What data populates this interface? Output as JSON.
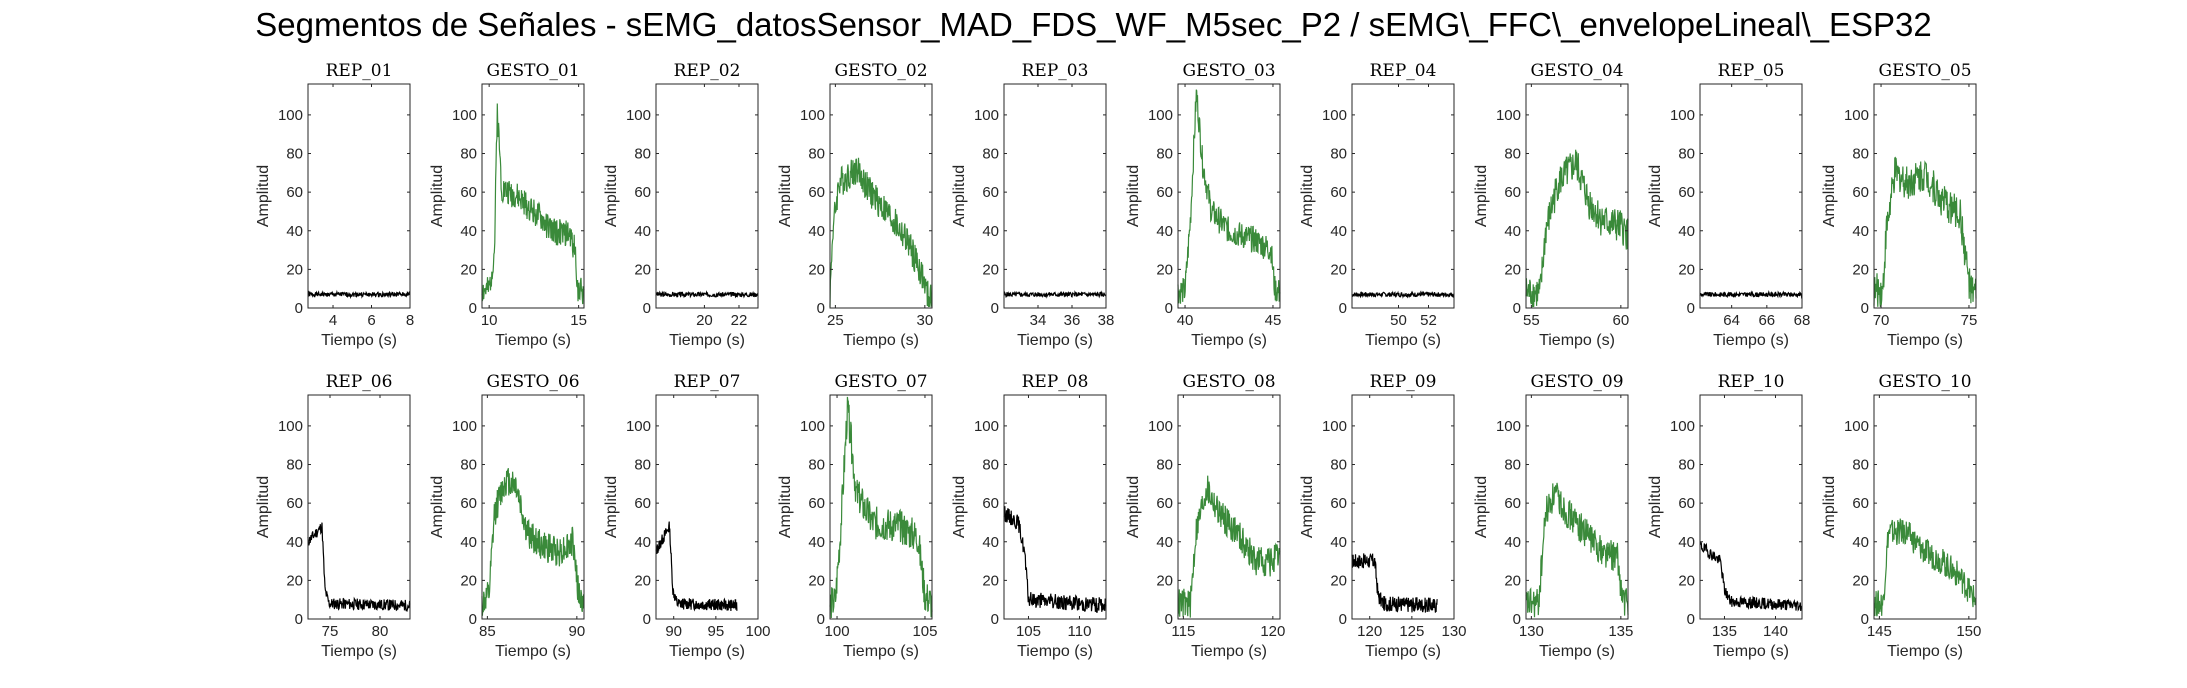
{
  "figure": {
    "title": "Segmentos de Señales - sEMG_datosSensor_MAD_FDS_WF_M5sec_P2 / sEMG\\_FFC\\_envelopeLineal\\_ESP32"
  },
  "chart_data": [
    {
      "type": "line",
      "title": "REP_01",
      "xlabel": "Tiempo (s)",
      "ylabel": "Amplitud",
      "xlim": [
        2.7,
        8.0
      ],
      "ylim": [
        0,
        116
      ],
      "xticks": [
        4,
        6,
        8
      ],
      "yticks": [
        0,
        20,
        40,
        60,
        80,
        100
      ],
      "color": "#000000",
      "profile": [
        [
          2.7,
          7
        ],
        [
          8.0,
          7
        ]
      ],
      "noise": 1.2,
      "seed": 1
    },
    {
      "type": "line",
      "title": "GESTO_01",
      "xlabel": "Tiempo (s)",
      "ylabel": "Amplitud",
      "xlim": [
        9.6,
        15.3
      ],
      "ylim": [
        0,
        116
      ],
      "xticks": [
        10,
        15
      ],
      "yticks": [
        0,
        20,
        40,
        60,
        80,
        100
      ],
      "color": "#3a8a3a",
      "profile": [
        [
          9.6,
          9
        ],
        [
          10.0,
          9
        ],
        [
          10.3,
          30
        ],
        [
          10.45,
          104
        ],
        [
          10.7,
          62
        ],
        [
          11.5,
          58
        ],
        [
          12.5,
          50
        ],
        [
          13.5,
          40
        ],
        [
          14.5,
          38
        ],
        [
          14.8,
          30
        ],
        [
          14.95,
          10
        ],
        [
          15.3,
          8
        ]
      ],
      "noise": 7,
      "seed": 2
    },
    {
      "type": "line",
      "title": "REP_02",
      "xlabel": "Tiempo (s)",
      "ylabel": "Amplitud",
      "xlim": [
        17.2,
        23.1
      ],
      "ylim": [
        0,
        116
      ],
      "xticks": [
        20,
        22
      ],
      "yticks": [
        0,
        20,
        40,
        60,
        80,
        100
      ],
      "color": "#000000",
      "profile": [
        [
          17.2,
          7
        ],
        [
          23.1,
          7
        ]
      ],
      "noise": 1.2,
      "seed": 3
    },
    {
      "type": "line",
      "title": "GESTO_02",
      "xlabel": "Tiempo (s)",
      "ylabel": "Amplitud",
      "xlim": [
        24.7,
        30.4
      ],
      "ylim": [
        0,
        116
      ],
      "xticks": [
        25,
        30
      ],
      "yticks": [
        0,
        20,
        40,
        60,
        80,
        100
      ],
      "color": "#3a8a3a",
      "profile": [
        [
          24.7,
          5
        ],
        [
          24.85,
          40
        ],
        [
          25.2,
          65
        ],
        [
          26.2,
          72
        ],
        [
          26.8,
          62
        ],
        [
          28.0,
          48
        ],
        [
          29.0,
          35
        ],
        [
          29.8,
          18
        ],
        [
          30.2,
          5
        ],
        [
          30.4,
          4
        ]
      ],
      "noise": 8,
      "seed": 4
    },
    {
      "type": "line",
      "title": "REP_03",
      "xlabel": "Tiempo (s)",
      "ylabel": "Amplitud",
      "xlim": [
        32.0,
        38.0
      ],
      "ylim": [
        0,
        116
      ],
      "xticks": [
        34,
        36,
        38
      ],
      "yticks": [
        0,
        20,
        40,
        60,
        80,
        100
      ],
      "color": "#000000",
      "profile": [
        [
          32.0,
          7
        ],
        [
          38.0,
          7
        ]
      ],
      "noise": 1.2,
      "seed": 5
    },
    {
      "type": "line",
      "title": "GESTO_03",
      "xlabel": "Tiempo (s)",
      "ylabel": "Amplitud",
      "xlim": [
        39.6,
        45.4
      ],
      "ylim": [
        0,
        116
      ],
      "xticks": [
        40,
        45
      ],
      "yticks": [
        0,
        20,
        40,
        60,
        80,
        100
      ],
      "color": "#3a8a3a",
      "profile": [
        [
          39.6,
          9
        ],
        [
          40.0,
          9
        ],
        [
          40.3,
          45
        ],
        [
          40.65,
          112
        ],
        [
          41.0,
          75
        ],
        [
          41.5,
          50
        ],
        [
          42.5,
          40
        ],
        [
          44.0,
          35
        ],
        [
          44.9,
          30
        ],
        [
          45.1,
          10
        ],
        [
          45.4,
          8
        ]
      ],
      "noise": 7,
      "seed": 6
    },
    {
      "type": "line",
      "title": "REP_04",
      "xlabel": "Tiempo (s)",
      "ylabel": "Amplitud",
      "xlim": [
        46.9,
        53.7
      ],
      "ylim": [
        0,
        116
      ],
      "xticks": [
        50,
        52
      ],
      "yticks": [
        0,
        20,
        40,
        60,
        80,
        100
      ],
      "color": "#000000",
      "profile": [
        [
          46.9,
          7
        ],
        [
          53.7,
          7
        ]
      ],
      "noise": 1.2,
      "seed": 7
    },
    {
      "type": "line",
      "title": "GESTO_04",
      "xlabel": "Tiempo (s)",
      "ylabel": "Amplitud",
      "xlim": [
        54.7,
        60.4
      ],
      "ylim": [
        0,
        116
      ],
      "xticks": [
        55,
        60
      ],
      "yticks": [
        0,
        20,
        40,
        60,
        80,
        100
      ],
      "color": "#3a8a3a",
      "profile": [
        [
          54.7,
          8
        ],
        [
          55.5,
          8
        ],
        [
          55.8,
          40
        ],
        [
          56.5,
          65
        ],
        [
          57.5,
          75
        ],
        [
          58.2,
          55
        ],
        [
          59.0,
          45
        ],
        [
          60.0,
          42
        ],
        [
          60.4,
          38
        ]
      ],
      "noise": 9,
      "seed": 8
    },
    {
      "type": "line",
      "title": "REP_05",
      "xlabel": "Tiempo (s)",
      "ylabel": "Amplitud",
      "xlim": [
        62.2,
        68.0
      ],
      "ylim": [
        0,
        116
      ],
      "xticks": [
        64,
        66,
        68
      ],
      "yticks": [
        0,
        20,
        40,
        60,
        80,
        100
      ],
      "color": "#000000",
      "profile": [
        [
          62.2,
          7
        ],
        [
          68.0,
          7
        ]
      ],
      "noise": 1.2,
      "seed": 9
    },
    {
      "type": "line",
      "title": "GESTO_05",
      "xlabel": "Tiempo (s)",
      "ylabel": "Amplitud",
      "xlim": [
        69.6,
        75.4
      ],
      "ylim": [
        0,
        116
      ],
      "xticks": [
        70,
        75
      ],
      "yticks": [
        0,
        20,
        40,
        60,
        80,
        100
      ],
      "color": "#3a8a3a",
      "profile": [
        [
          69.6,
          9
        ],
        [
          70.1,
          9
        ],
        [
          70.3,
          40
        ],
        [
          70.8,
          70
        ],
        [
          71.5,
          65
        ],
        [
          72.5,
          70
        ],
        [
          73.5,
          55
        ],
        [
          74.5,
          48
        ],
        [
          74.9,
          20
        ],
        [
          75.1,
          8
        ],
        [
          75.4,
          7
        ]
      ],
      "noise": 9,
      "seed": 10
    },
    {
      "type": "line",
      "title": "REP_06",
      "xlabel": "Tiempo (s)",
      "ylabel": "Amplitud",
      "xlim": [
        72.8,
        83.0
      ],
      "ylim": [
        0,
        116
      ],
      "xticks": [
        75,
        80
      ],
      "yticks": [
        0,
        20,
        40,
        60,
        80,
        100
      ],
      "color": "#000000",
      "profile": [
        [
          72.8,
          40
        ],
        [
          74.2,
          48
        ],
        [
          74.5,
          15
        ],
        [
          74.9,
          8
        ],
        [
          83.0,
          7
        ]
      ],
      "noise": 3,
      "seed": 11
    },
    {
      "type": "line",
      "title": "GESTO_06",
      "xlabel": "Tiempo (s)",
      "ylabel": "Amplitud",
      "xlim": [
        84.7,
        90.4
      ],
      "ylim": [
        0,
        116
      ],
      "xticks": [
        85,
        90
      ],
      "yticks": [
        0,
        20,
        40,
        60,
        80,
        100
      ],
      "color": "#3a8a3a",
      "profile": [
        [
          84.7,
          8
        ],
        [
          85.1,
          12
        ],
        [
          85.4,
          55
        ],
        [
          86.0,
          72
        ],
        [
          86.6,
          70
        ],
        [
          87.2,
          45
        ],
        [
          88.0,
          38
        ],
        [
          89.0,
          35
        ],
        [
          89.8,
          40
        ],
        [
          90.1,
          12
        ],
        [
          90.4,
          7
        ]
      ],
      "noise": 8,
      "seed": 12
    },
    {
      "type": "line",
      "title": "REP_07",
      "xlabel": "Tiempo (s)",
      "ylabel": "Amplitud",
      "xlim": [
        87.9,
        100.0
      ],
      "ylim": [
        0,
        116
      ],
      "xticks": [
        90,
        95,
        100
      ],
      "yticks": [
        0,
        20,
        40,
        60,
        80,
        100
      ],
      "color": "#000000",
      "profile": [
        [
          87.9,
          35
        ],
        [
          89.5,
          48
        ],
        [
          89.9,
          15
        ],
        [
          90.4,
          8
        ],
        [
          97.5,
          7
        ]
      ],
      "noise": 3,
      "seed": 13
    },
    {
      "type": "line",
      "title": "GESTO_07",
      "xlabel": "Tiempo (s)",
      "ylabel": "Amplitud",
      "xlim": [
        99.6,
        105.4
      ],
      "ylim": [
        0,
        116
      ],
      "xticks": [
        100,
        105
      ],
      "yticks": [
        0,
        20,
        40,
        60,
        80,
        100
      ],
      "color": "#3a8a3a",
      "profile": [
        [
          99.6,
          8
        ],
        [
          99.9,
          9
        ],
        [
          100.2,
          45
        ],
        [
          100.6,
          110
        ],
        [
          101.1,
          65
        ],
        [
          102.0,
          50
        ],
        [
          103.5,
          48
        ],
        [
          104.6,
          42
        ],
        [
          105.0,
          12
        ],
        [
          105.4,
          8
        ]
      ],
      "noise": 9,
      "seed": 14
    },
    {
      "type": "line",
      "title": "REP_08",
      "xlabel": "Tiempo (s)",
      "ylabel": "Amplitud",
      "xlim": [
        102.6,
        112.6
      ],
      "ylim": [
        0,
        116
      ],
      "xticks": [
        105,
        110
      ],
      "yticks": [
        0,
        20,
        40,
        60,
        80,
        100
      ],
      "color": "#000000",
      "profile": [
        [
          102.6,
          55
        ],
        [
          104.0,
          50
        ],
        [
          104.6,
          35
        ],
        [
          105.0,
          10
        ],
        [
          112.6,
          7
        ]
      ],
      "noise": 4,
      "seed": 15
    },
    {
      "type": "line",
      "title": "GESTO_08",
      "xlabel": "Tiempo (s)",
      "ylabel": "Amplitud",
      "xlim": [
        114.7,
        120.4
      ],
      "ylim": [
        0,
        116
      ],
      "xticks": [
        115,
        120
      ],
      "yticks": [
        0,
        20,
        40,
        60,
        80,
        100
      ],
      "color": "#3a8a3a",
      "profile": [
        [
          114.7,
          8
        ],
        [
          115.4,
          8
        ],
        [
          115.7,
          45
        ],
        [
          116.3,
          68
        ],
        [
          117.0,
          55
        ],
        [
          118.0,
          45
        ],
        [
          119.0,
          30
        ],
        [
          120.0,
          30
        ],
        [
          120.4,
          32
        ]
      ],
      "noise": 8,
      "seed": 16
    },
    {
      "type": "line",
      "title": "REP_09",
      "xlabel": "Tiempo (s)",
      "ylabel": "Amplitud",
      "xlim": [
        117.9,
        130.0
      ],
      "ylim": [
        0,
        116
      ],
      "xticks": [
        120,
        125,
        130
      ],
      "yticks": [
        0,
        20,
        40,
        60,
        80,
        100
      ],
      "color": "#000000",
      "profile": [
        [
          117.9,
          30
        ],
        [
          120.6,
          30
        ],
        [
          121.0,
          12
        ],
        [
          121.6,
          8
        ],
        [
          128.0,
          7
        ]
      ],
      "noise": 4,
      "seed": 17
    },
    {
      "type": "line",
      "title": "GESTO_09",
      "xlabel": "Tiempo (s)",
      "ylabel": "Amplitud",
      "xlim": [
        129.7,
        135.4
      ],
      "ylim": [
        0,
        116
      ],
      "xticks": [
        130,
        135
      ],
      "yticks": [
        0,
        20,
        40,
        60,
        80,
        100
      ],
      "color": "#3a8a3a",
      "profile": [
        [
          129.7,
          8
        ],
        [
          130.4,
          8
        ],
        [
          130.8,
          55
        ],
        [
          131.3,
          65
        ],
        [
          132.0,
          55
        ],
        [
          133.0,
          45
        ],
        [
          134.0,
          35
        ],
        [
          134.8,
          32
        ],
        [
          135.1,
          10
        ],
        [
          135.4,
          8
        ]
      ],
      "noise": 8,
      "seed": 18
    },
    {
      "type": "line",
      "title": "REP_10",
      "xlabel": "Tiempo (s)",
      "ylabel": "Amplitud",
      "xlim": [
        132.6,
        142.6
      ],
      "ylim": [
        0,
        116
      ],
      "xticks": [
        135,
        140
      ],
      "yticks": [
        0,
        20,
        40,
        60,
        80,
        100
      ],
      "color": "#000000",
      "profile": [
        [
          132.6,
          38
        ],
        [
          134.6,
          30
        ],
        [
          135.0,
          15
        ],
        [
          135.6,
          9
        ],
        [
          142.6,
          7
        ]
      ],
      "noise": 3,
      "seed": 19
    },
    {
      "type": "line",
      "title": "GESTO_10",
      "xlabel": "Tiempo (s)",
      "ylabel": "Amplitud",
      "xlim": [
        144.7,
        150.4
      ],
      "ylim": [
        0,
        116
      ],
      "xticks": [
        145,
        150
      ],
      "yticks": [
        0,
        20,
        40,
        60,
        80,
        100
      ],
      "color": "#3a8a3a",
      "profile": [
        [
          144.7,
          8
        ],
        [
          145.2,
          8
        ],
        [
          145.5,
          45
        ],
        [
          146.5,
          45
        ],
        [
          147.5,
          35
        ],
        [
          148.5,
          30
        ],
        [
          149.5,
          22
        ],
        [
          150.2,
          12
        ],
        [
          150.4,
          10
        ]
      ],
      "noise": 7,
      "seed": 20
    }
  ]
}
